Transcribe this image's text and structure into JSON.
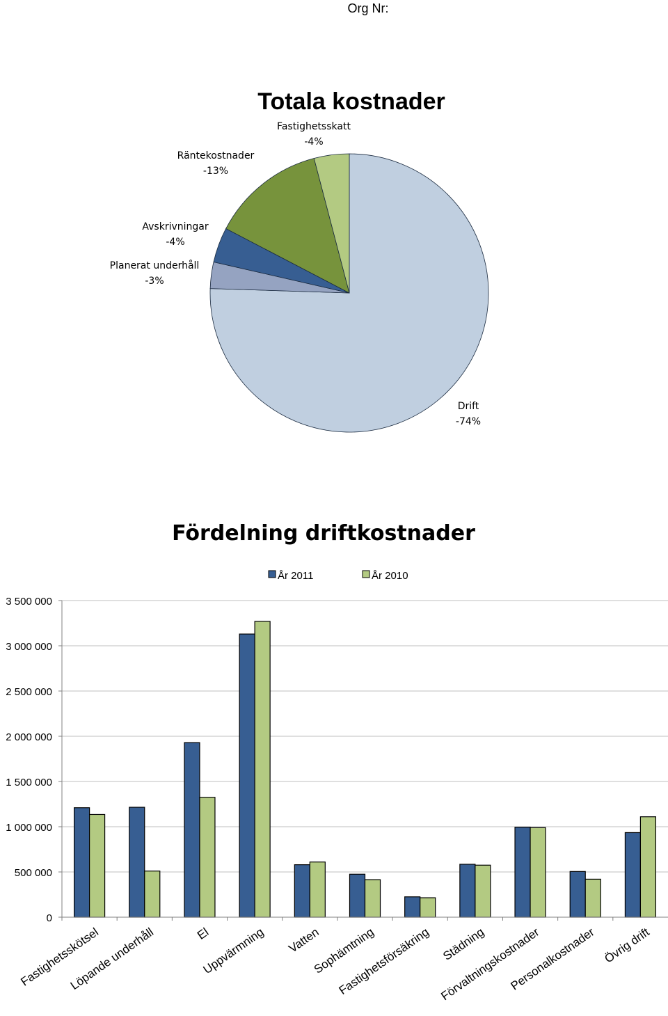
{
  "header": {
    "org_label": "Org Nr:"
  },
  "chart_data": [
    {
      "type": "pie",
      "title": "Totala kostnader",
      "slices": [
        {
          "name": "Drift",
          "label": "-74%",
          "value": 74,
          "color": "#c0cfe0"
        },
        {
          "name": "Planerat underhåll",
          "label": "-3%",
          "value": 3,
          "color": "#95a3c1"
        },
        {
          "name": "Avskrivningar",
          "label": "-4%",
          "value": 4,
          "color": "#375e92"
        },
        {
          "name": "Räntekostnader",
          "label": "-13%",
          "value": 13,
          "color": "#77933c"
        },
        {
          "name": "Fastighetsskatt",
          "label": "-4%",
          "value": 4,
          "color": "#b3ca82"
        }
      ]
    },
    {
      "type": "bar",
      "title": "Fördelning driftkostnader",
      "categories": [
        "Fastighetsskötsel",
        "Löpande underhåll",
        "El",
        "Uppvärmning",
        "Vatten",
        "Sophämtning",
        "Fastighetsförsäkring",
        "Städning",
        "Förvaltningskostnader",
        "Personalkostnader",
        "Övrig drift"
      ],
      "series": [
        {
          "name": "År 2011",
          "color": "#375e92",
          "values": [
            1210000,
            1215000,
            1930000,
            3130000,
            580000,
            475000,
            225000,
            585000,
            995000,
            505000,
            935000
          ]
        },
        {
          "name": "År 2010",
          "color": "#b3ca82",
          "values": [
            1135000,
            510000,
            1325000,
            3270000,
            610000,
            415000,
            215000,
            575000,
            990000,
            420000,
            1110000
          ]
        }
      ],
      "ylim": [
        0,
        3500000
      ],
      "yticks": [
        0,
        500000,
        1000000,
        1500000,
        2000000,
        2500000,
        3000000,
        3500000
      ],
      "ytick_labels": [
        "0",
        "500 000",
        "1 000 000",
        "1 500 000",
        "2 000 000",
        "2 500 000",
        "3 000 000",
        "3 500 000"
      ],
      "grid": true,
      "legend": "top"
    }
  ]
}
